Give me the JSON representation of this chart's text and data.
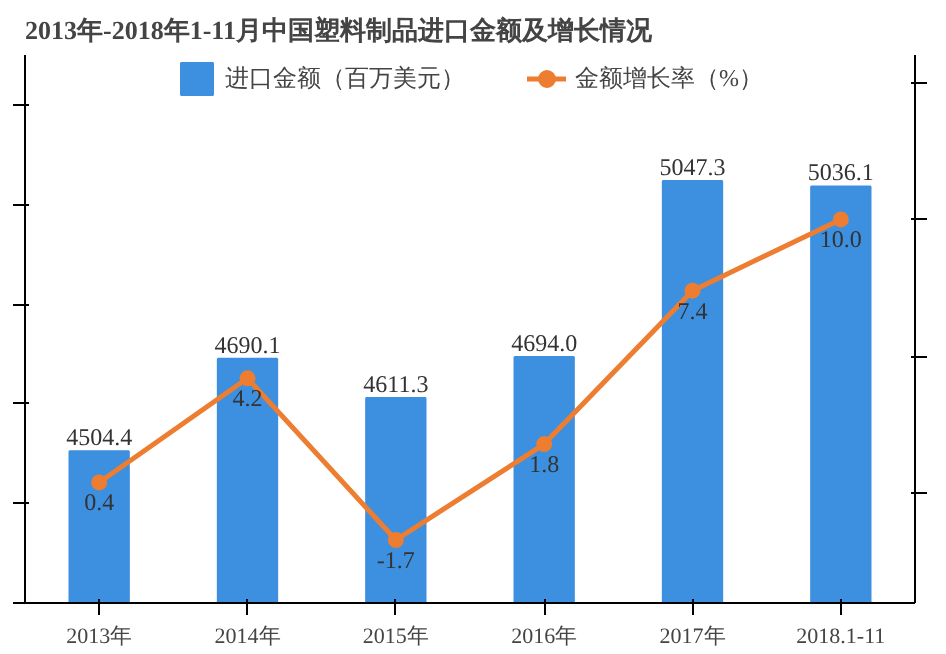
{
  "chart_data": {
    "type": "bar",
    "title": "2013年-2018年1-11月中国塑料制品进口金额及增长情况",
    "categories": [
      "2013年",
      "2014年",
      "2015年",
      "2016年",
      "2017年",
      "2018.1-11"
    ],
    "series": [
      {
        "name": "进口金额（百万美元）",
        "color": "#3d8fe0",
        "values": [
          4504.4,
          4690.1,
          4611.3,
          4694.0,
          5047.3,
          5036.1
        ],
        "value_labels": [
          "4504.4",
          "4690.1",
          "4611.3",
          "4694.0",
          "5047.3",
          "5036.1"
        ]
      },
      {
        "name": "金额增长率（%）",
        "type": "line",
        "axis": "y2",
        "color": "#ed7d31",
        "values": [
          0.4,
          4.2,
          -1.7,
          1.8,
          7.4,
          10.0
        ],
        "value_labels": [
          "0.4",
          "4.2",
          "-1.7",
          "1.8",
          "7.4",
          "10.0"
        ]
      }
    ],
    "ylim": [
      4200,
      5300
    ],
    "y2lim": [
      -4,
      16
    ],
    "legend": "top",
    "marker": "circle",
    "line_style": "solid",
    "grid": false,
    "tick_labels": "x"
  }
}
